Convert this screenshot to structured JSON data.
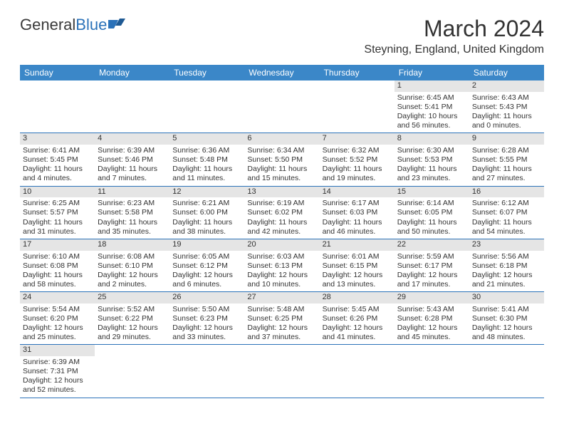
{
  "logo": {
    "text1": "General",
    "text2": "Blue"
  },
  "title": "March 2024",
  "location": "Steyning, England, United Kingdom",
  "weekdays": [
    "Sunday",
    "Monday",
    "Tuesday",
    "Wednesday",
    "Thursday",
    "Friday",
    "Saturday"
  ],
  "colors": {
    "header_bg": "#3b87c8",
    "rule": "#2b72b9",
    "daynum_bg": "#e5e5e5"
  },
  "weeks": [
    [
      null,
      null,
      null,
      null,
      null,
      {
        "n": "1",
        "sr": "Sunrise: 6:45 AM",
        "ss": "Sunset: 5:41 PM",
        "d1": "Daylight: 10 hours",
        "d2": "and 56 minutes."
      },
      {
        "n": "2",
        "sr": "Sunrise: 6:43 AM",
        "ss": "Sunset: 5:43 PM",
        "d1": "Daylight: 11 hours",
        "d2": "and 0 minutes."
      }
    ],
    [
      {
        "n": "3",
        "sr": "Sunrise: 6:41 AM",
        "ss": "Sunset: 5:45 PM",
        "d1": "Daylight: 11 hours",
        "d2": "and 4 minutes."
      },
      {
        "n": "4",
        "sr": "Sunrise: 6:39 AM",
        "ss": "Sunset: 5:46 PM",
        "d1": "Daylight: 11 hours",
        "d2": "and 7 minutes."
      },
      {
        "n": "5",
        "sr": "Sunrise: 6:36 AM",
        "ss": "Sunset: 5:48 PM",
        "d1": "Daylight: 11 hours",
        "d2": "and 11 minutes."
      },
      {
        "n": "6",
        "sr": "Sunrise: 6:34 AM",
        "ss": "Sunset: 5:50 PM",
        "d1": "Daylight: 11 hours",
        "d2": "and 15 minutes."
      },
      {
        "n": "7",
        "sr": "Sunrise: 6:32 AM",
        "ss": "Sunset: 5:52 PM",
        "d1": "Daylight: 11 hours",
        "d2": "and 19 minutes."
      },
      {
        "n": "8",
        "sr": "Sunrise: 6:30 AM",
        "ss": "Sunset: 5:53 PM",
        "d1": "Daylight: 11 hours",
        "d2": "and 23 minutes."
      },
      {
        "n": "9",
        "sr": "Sunrise: 6:28 AM",
        "ss": "Sunset: 5:55 PM",
        "d1": "Daylight: 11 hours",
        "d2": "and 27 minutes."
      }
    ],
    [
      {
        "n": "10",
        "sr": "Sunrise: 6:25 AM",
        "ss": "Sunset: 5:57 PM",
        "d1": "Daylight: 11 hours",
        "d2": "and 31 minutes."
      },
      {
        "n": "11",
        "sr": "Sunrise: 6:23 AM",
        "ss": "Sunset: 5:58 PM",
        "d1": "Daylight: 11 hours",
        "d2": "and 35 minutes."
      },
      {
        "n": "12",
        "sr": "Sunrise: 6:21 AM",
        "ss": "Sunset: 6:00 PM",
        "d1": "Daylight: 11 hours",
        "d2": "and 38 minutes."
      },
      {
        "n": "13",
        "sr": "Sunrise: 6:19 AM",
        "ss": "Sunset: 6:02 PM",
        "d1": "Daylight: 11 hours",
        "d2": "and 42 minutes."
      },
      {
        "n": "14",
        "sr": "Sunrise: 6:17 AM",
        "ss": "Sunset: 6:03 PM",
        "d1": "Daylight: 11 hours",
        "d2": "and 46 minutes."
      },
      {
        "n": "15",
        "sr": "Sunrise: 6:14 AM",
        "ss": "Sunset: 6:05 PM",
        "d1": "Daylight: 11 hours",
        "d2": "and 50 minutes."
      },
      {
        "n": "16",
        "sr": "Sunrise: 6:12 AM",
        "ss": "Sunset: 6:07 PM",
        "d1": "Daylight: 11 hours",
        "d2": "and 54 minutes."
      }
    ],
    [
      {
        "n": "17",
        "sr": "Sunrise: 6:10 AM",
        "ss": "Sunset: 6:08 PM",
        "d1": "Daylight: 11 hours",
        "d2": "and 58 minutes."
      },
      {
        "n": "18",
        "sr": "Sunrise: 6:08 AM",
        "ss": "Sunset: 6:10 PM",
        "d1": "Daylight: 12 hours",
        "d2": "and 2 minutes."
      },
      {
        "n": "19",
        "sr": "Sunrise: 6:05 AM",
        "ss": "Sunset: 6:12 PM",
        "d1": "Daylight: 12 hours",
        "d2": "and 6 minutes."
      },
      {
        "n": "20",
        "sr": "Sunrise: 6:03 AM",
        "ss": "Sunset: 6:13 PM",
        "d1": "Daylight: 12 hours",
        "d2": "and 10 minutes."
      },
      {
        "n": "21",
        "sr": "Sunrise: 6:01 AM",
        "ss": "Sunset: 6:15 PM",
        "d1": "Daylight: 12 hours",
        "d2": "and 13 minutes."
      },
      {
        "n": "22",
        "sr": "Sunrise: 5:59 AM",
        "ss": "Sunset: 6:17 PM",
        "d1": "Daylight: 12 hours",
        "d2": "and 17 minutes."
      },
      {
        "n": "23",
        "sr": "Sunrise: 5:56 AM",
        "ss": "Sunset: 6:18 PM",
        "d1": "Daylight: 12 hours",
        "d2": "and 21 minutes."
      }
    ],
    [
      {
        "n": "24",
        "sr": "Sunrise: 5:54 AM",
        "ss": "Sunset: 6:20 PM",
        "d1": "Daylight: 12 hours",
        "d2": "and 25 minutes."
      },
      {
        "n": "25",
        "sr": "Sunrise: 5:52 AM",
        "ss": "Sunset: 6:22 PM",
        "d1": "Daylight: 12 hours",
        "d2": "and 29 minutes."
      },
      {
        "n": "26",
        "sr": "Sunrise: 5:50 AM",
        "ss": "Sunset: 6:23 PM",
        "d1": "Daylight: 12 hours",
        "d2": "and 33 minutes."
      },
      {
        "n": "27",
        "sr": "Sunrise: 5:48 AM",
        "ss": "Sunset: 6:25 PM",
        "d1": "Daylight: 12 hours",
        "d2": "and 37 minutes."
      },
      {
        "n": "28",
        "sr": "Sunrise: 5:45 AM",
        "ss": "Sunset: 6:26 PM",
        "d1": "Daylight: 12 hours",
        "d2": "and 41 minutes."
      },
      {
        "n": "29",
        "sr": "Sunrise: 5:43 AM",
        "ss": "Sunset: 6:28 PM",
        "d1": "Daylight: 12 hours",
        "d2": "and 45 minutes."
      },
      {
        "n": "30",
        "sr": "Sunrise: 5:41 AM",
        "ss": "Sunset: 6:30 PM",
        "d1": "Daylight: 12 hours",
        "d2": "and 48 minutes."
      }
    ],
    [
      {
        "n": "31",
        "sr": "Sunrise: 6:39 AM",
        "ss": "Sunset: 7:31 PM",
        "d1": "Daylight: 12 hours",
        "d2": "and 52 minutes."
      },
      null,
      null,
      null,
      null,
      null,
      null
    ]
  ]
}
